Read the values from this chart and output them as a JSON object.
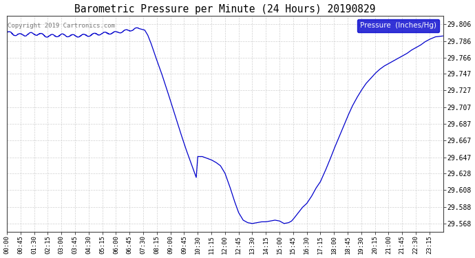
{
  "title": "Barometric Pressure per Minute (24 Hours) 20190829",
  "copyright": "Copyright 2019 Cartronics.com",
  "legend_label": "Pressure  (Inches/Hg)",
  "line_color": "#0000cc",
  "bg_color": "#ffffff",
  "grid_color": "#cccccc",
  "ylim": [
    29.558,
    29.816
  ],
  "yticks": [
    29.568,
    29.588,
    29.608,
    29.628,
    29.647,
    29.667,
    29.687,
    29.707,
    29.727,
    29.747,
    29.766,
    29.786,
    29.806
  ],
  "xtick_labels": [
    "00:00",
    "00:45",
    "01:30",
    "02:15",
    "03:00",
    "03:45",
    "04:30",
    "05:15",
    "06:00",
    "06:45",
    "07:30",
    "08:15",
    "09:00",
    "09:45",
    "10:30",
    "11:15",
    "12:00",
    "12:45",
    "13:30",
    "14:15",
    "15:00",
    "15:45",
    "16:30",
    "17:15",
    "18:00",
    "18:45",
    "19:30",
    "20:15",
    "21:00",
    "21:45",
    "22:30",
    "23:15"
  ],
  "key_times_minutes": [
    0,
    45,
    90,
    135,
    180,
    225,
    270,
    315,
    360,
    405,
    450,
    495,
    540,
    585,
    630,
    675,
    720,
    765,
    810,
    855,
    900,
    945,
    990,
    1035,
    1080,
    1125,
    1170,
    1215,
    1260,
    1305,
    1350,
    1395
  ],
  "ctrl_points": [
    [
      0,
      29.796
    ],
    [
      45,
      29.793
    ],
    [
      90,
      29.795
    ],
    [
      135,
      29.792
    ],
    [
      180,
      29.793
    ],
    [
      225,
      29.792
    ],
    [
      270,
      29.793
    ],
    [
      315,
      29.795
    ],
    [
      360,
      29.796
    ],
    [
      405,
      29.799
    ],
    [
      435,
      29.801
    ],
    [
      455,
      29.799
    ],
    [
      465,
      29.793
    ],
    [
      475,
      29.784
    ],
    [
      490,
      29.768
    ],
    [
      510,
      29.748
    ],
    [
      530,
      29.726
    ],
    [
      550,
      29.703
    ],
    [
      570,
      29.68
    ],
    [
      590,
      29.658
    ],
    [
      610,
      29.638
    ],
    [
      625,
      29.623
    ],
    [
      630,
      29.648
    ],
    [
      645,
      29.648
    ],
    [
      660,
      29.646
    ],
    [
      675,
      29.644
    ],
    [
      690,
      29.641
    ],
    [
      705,
      29.637
    ],
    [
      720,
      29.628
    ],
    [
      735,
      29.613
    ],
    [
      750,
      29.596
    ],
    [
      765,
      29.581
    ],
    [
      780,
      29.572
    ],
    [
      795,
      29.569
    ],
    [
      810,
      29.568
    ],
    [
      825,
      29.569
    ],
    [
      840,
      29.57
    ],
    [
      855,
      29.57
    ],
    [
      870,
      29.571
    ],
    [
      885,
      29.572
    ],
    [
      900,
      29.571
    ],
    [
      915,
      29.568
    ],
    [
      930,
      29.569
    ],
    [
      940,
      29.571
    ],
    [
      945,
      29.573
    ],
    [
      960,
      29.58
    ],
    [
      975,
      29.587
    ],
    [
      990,
      29.592
    ],
    [
      1005,
      29.6
    ],
    [
      1020,
      29.61
    ],
    [
      1035,
      29.618
    ],
    [
      1050,
      29.63
    ],
    [
      1065,
      29.643
    ],
    [
      1080,
      29.657
    ],
    [
      1095,
      29.67
    ],
    [
      1110,
      29.683
    ],
    [
      1125,
      29.696
    ],
    [
      1140,
      29.708
    ],
    [
      1155,
      29.718
    ],
    [
      1170,
      29.727
    ],
    [
      1185,
      29.735
    ],
    [
      1200,
      29.741
    ],
    [
      1215,
      29.747
    ],
    [
      1230,
      29.752
    ],
    [
      1245,
      29.756
    ],
    [
      1260,
      29.759
    ],
    [
      1275,
      29.762
    ],
    [
      1290,
      29.765
    ],
    [
      1305,
      29.768
    ],
    [
      1320,
      29.771
    ],
    [
      1335,
      29.775
    ],
    [
      1350,
      29.778
    ],
    [
      1365,
      29.781
    ],
    [
      1380,
      29.785
    ],
    [
      1395,
      29.788
    ],
    [
      1415,
      29.791
    ],
    [
      1439,
      29.792
    ]
  ],
  "wiggle_segment": [
    0,
    435
  ],
  "wiggle_amplitude": 0.0018,
  "wiggle_freq": 0.18
}
